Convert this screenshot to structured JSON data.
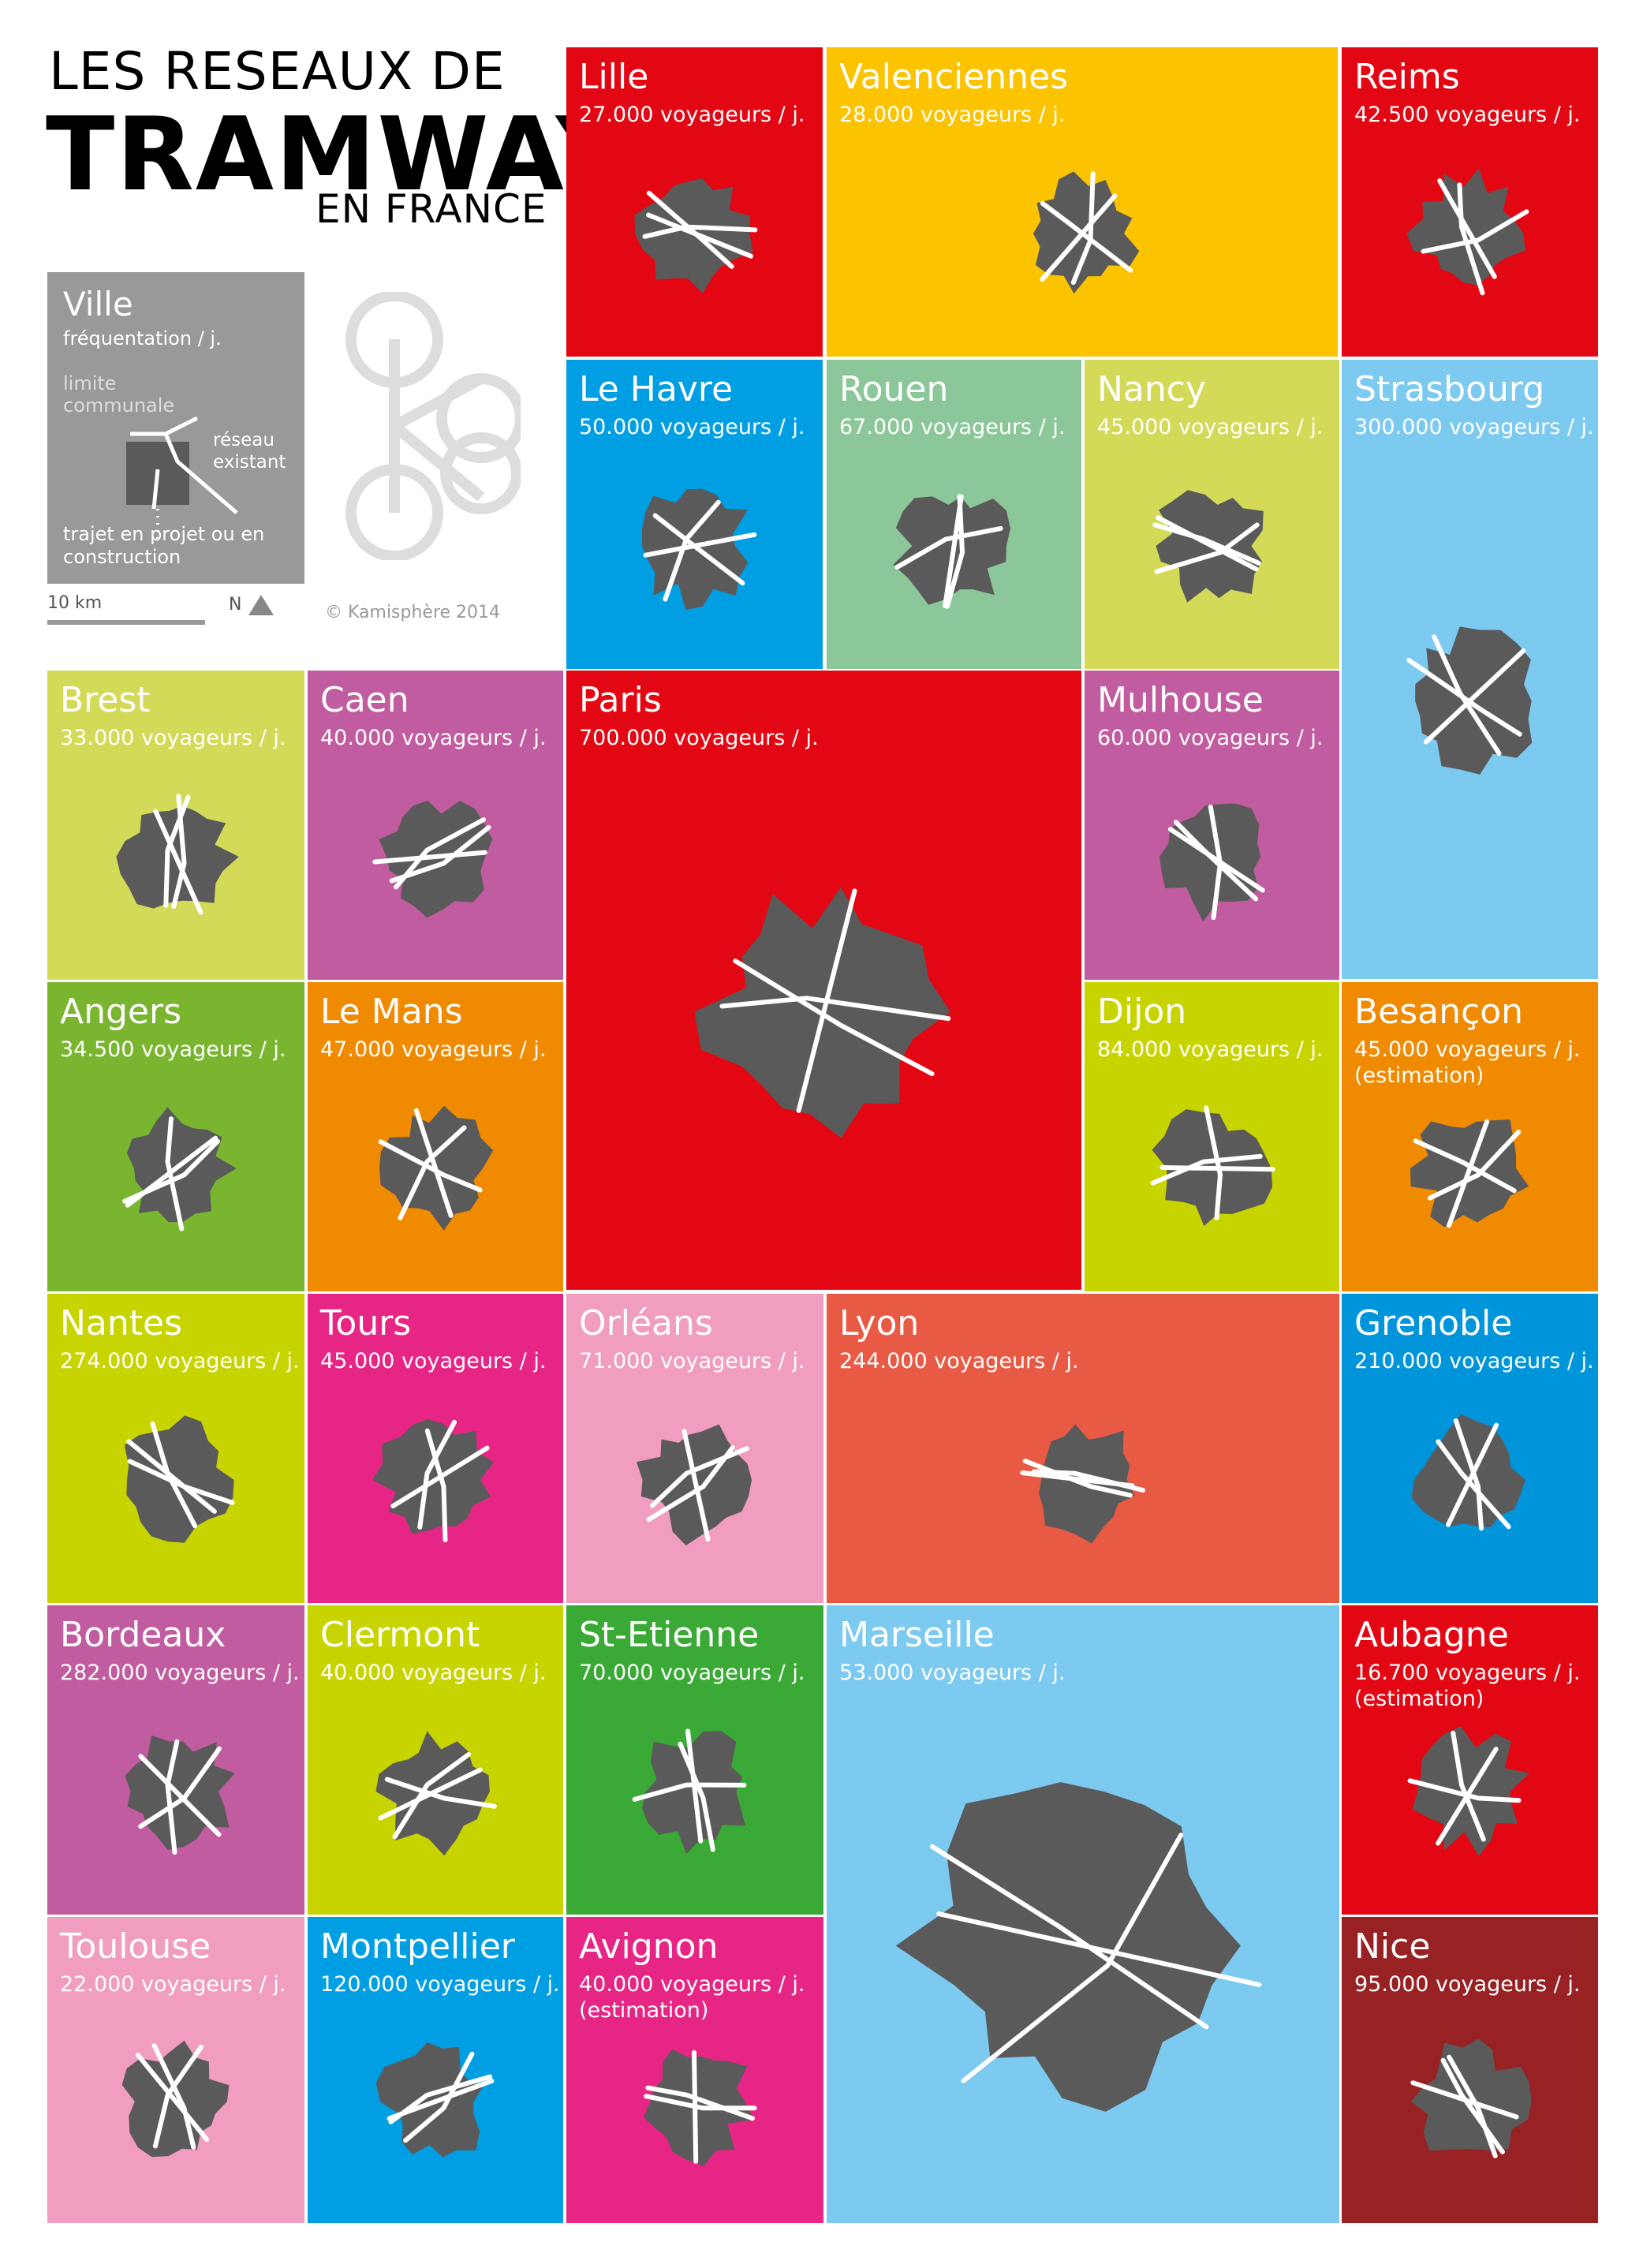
{
  "header": {
    "line1": "LES RESEAUX DE",
    "line2": "TRAMWAY",
    "line3": "EN FRANCE"
  },
  "legend": {
    "name": "Ville",
    "frequentation": "fréquentation / j.",
    "boundary": "limite communale",
    "network": "réseau existant",
    "project": "trajet en projet ou en construction",
    "scale": "10 km",
    "north": "N"
  },
  "copyright": "© Kamisphère 2014",
  "colors": {
    "red": "#e30613",
    "yellow": "#fbc300",
    "blue": "#009fe3",
    "mint": "#8cc799",
    "lime": "#c8d400",
    "sky": "#7dcaf0",
    "olive": "#d2da58",
    "purple": "#c05c9f",
    "green": "#7ab530",
    "orange": "#f08a00",
    "pink": "#e72585",
    "lightpink": "#f09dbf",
    "coral": "#e95a45",
    "darkgreen": "#3aa935",
    "maroon": "#972123",
    "tealblue": "#0095db",
    "shape": "#5a5a5a"
  },
  "cities": [
    {
      "name": "Lille",
      "riders": "27.000 voyageurs / j."
    },
    {
      "name": "Valenciennes",
      "riders": "28.000 voyageurs / j."
    },
    {
      "name": "Reims",
      "riders": "42.500 voyageurs / j."
    },
    {
      "name": "Le Havre",
      "riders": "50.000 voyageurs / j."
    },
    {
      "name": "Rouen",
      "riders": "67.000 voyageurs / j."
    },
    {
      "name": "Nancy",
      "riders": "45.000 voyageurs / j."
    },
    {
      "name": "Strasbourg",
      "riders": "300.000 voyageurs / j."
    },
    {
      "name": "Brest",
      "riders": "33.000 voyageurs / j."
    },
    {
      "name": "Caen",
      "riders": "40.000 voyageurs / j."
    },
    {
      "name": "Paris",
      "riders": "700.000 voyageurs / j."
    },
    {
      "name": "Mulhouse",
      "riders": "60.000 voyageurs / j."
    },
    {
      "name": "Angers",
      "riders": "34.500 voyageurs / j."
    },
    {
      "name": "Le Mans",
      "riders": "47.000 voyageurs / j."
    },
    {
      "name": "Dijon",
      "riders": "84.000 voyageurs / j."
    },
    {
      "name": "Besançon",
      "riders": "45.000 voyageurs / j. (estimation)"
    },
    {
      "name": "Nantes",
      "riders": "274.000 voyageurs / j."
    },
    {
      "name": "Tours",
      "riders": "45.000 voyageurs / j."
    },
    {
      "name": "Orléans",
      "riders": "71.000 voyageurs / j."
    },
    {
      "name": "Lyon",
      "riders": "244.000 voyageurs / j."
    },
    {
      "name": "Grenoble",
      "riders": "210.000 voyageurs / j."
    },
    {
      "name": "Bordeaux",
      "riders": "282.000 voyageurs / j."
    },
    {
      "name": "Clermont",
      "riders": "40.000 voyageurs / j."
    },
    {
      "name": "St-Etienne",
      "riders": "70.000 voyageurs / j."
    },
    {
      "name": "Marseille",
      "riders": "53.000 voyageurs / j."
    },
    {
      "name": "Aubagne",
      "riders": "16.700 voyageurs / j. (estimation)"
    },
    {
      "name": "Toulouse",
      "riders": "22.000 voyageurs / j."
    },
    {
      "name": "Montpellier",
      "riders": "120.000 voyageurs / j."
    },
    {
      "name": "Avignon",
      "riders": "40.000 voyageurs / j. (estimation)"
    },
    {
      "name": "Nice",
      "riders": "95.000 voyageurs / j."
    }
  ]
}
